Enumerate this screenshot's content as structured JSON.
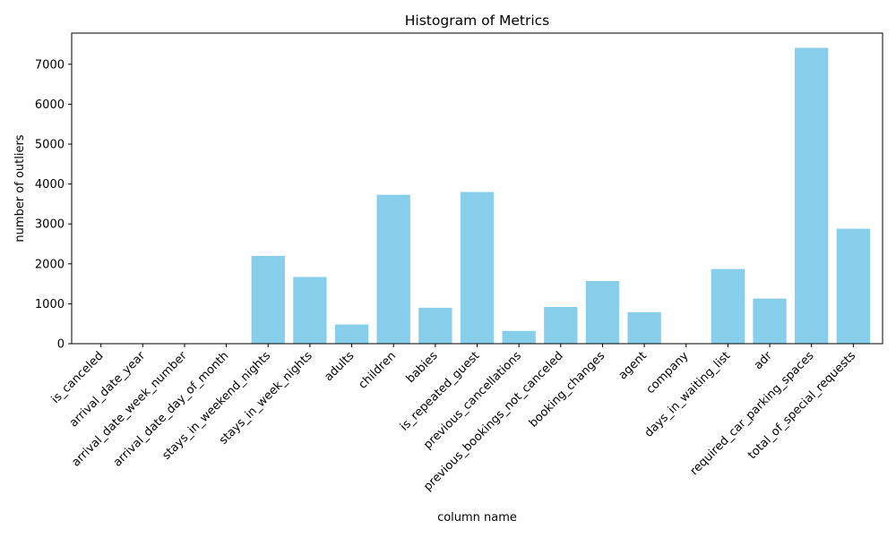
{
  "chart_data": {
    "type": "bar",
    "title": "Histogram of Metrics",
    "xlabel": "column name",
    "ylabel": "number of outliers",
    "categories": [
      "is_canceled",
      "arrival_date_year",
      "arrival_date_week_number",
      "arrival_date_day_of_month",
      "stays_in_weekend_nights",
      "stays_in_week_nights",
      "adults",
      "children",
      "babies",
      "is_repeated_guest",
      "previous_cancellations",
      "previous_bookings_not_canceled",
      "booking_changes",
      "agent",
      "company",
      "days_in_waiting_list",
      "adr",
      "required_car_parking_spaces",
      "total_of_special_requests"
    ],
    "values": [
      0,
      0,
      0,
      0,
      2200,
      1670,
      480,
      3730,
      900,
      3800,
      320,
      920,
      1570,
      790,
      0,
      1870,
      1130,
      7410,
      2880
    ],
    "ylim": [
      0,
      7780
    ],
    "yticks": [
      0,
      1000,
      2000,
      3000,
      4000,
      5000,
      6000,
      7000
    ],
    "bar_color": "#87ceeb",
    "grid": false,
    "legend": "none"
  }
}
